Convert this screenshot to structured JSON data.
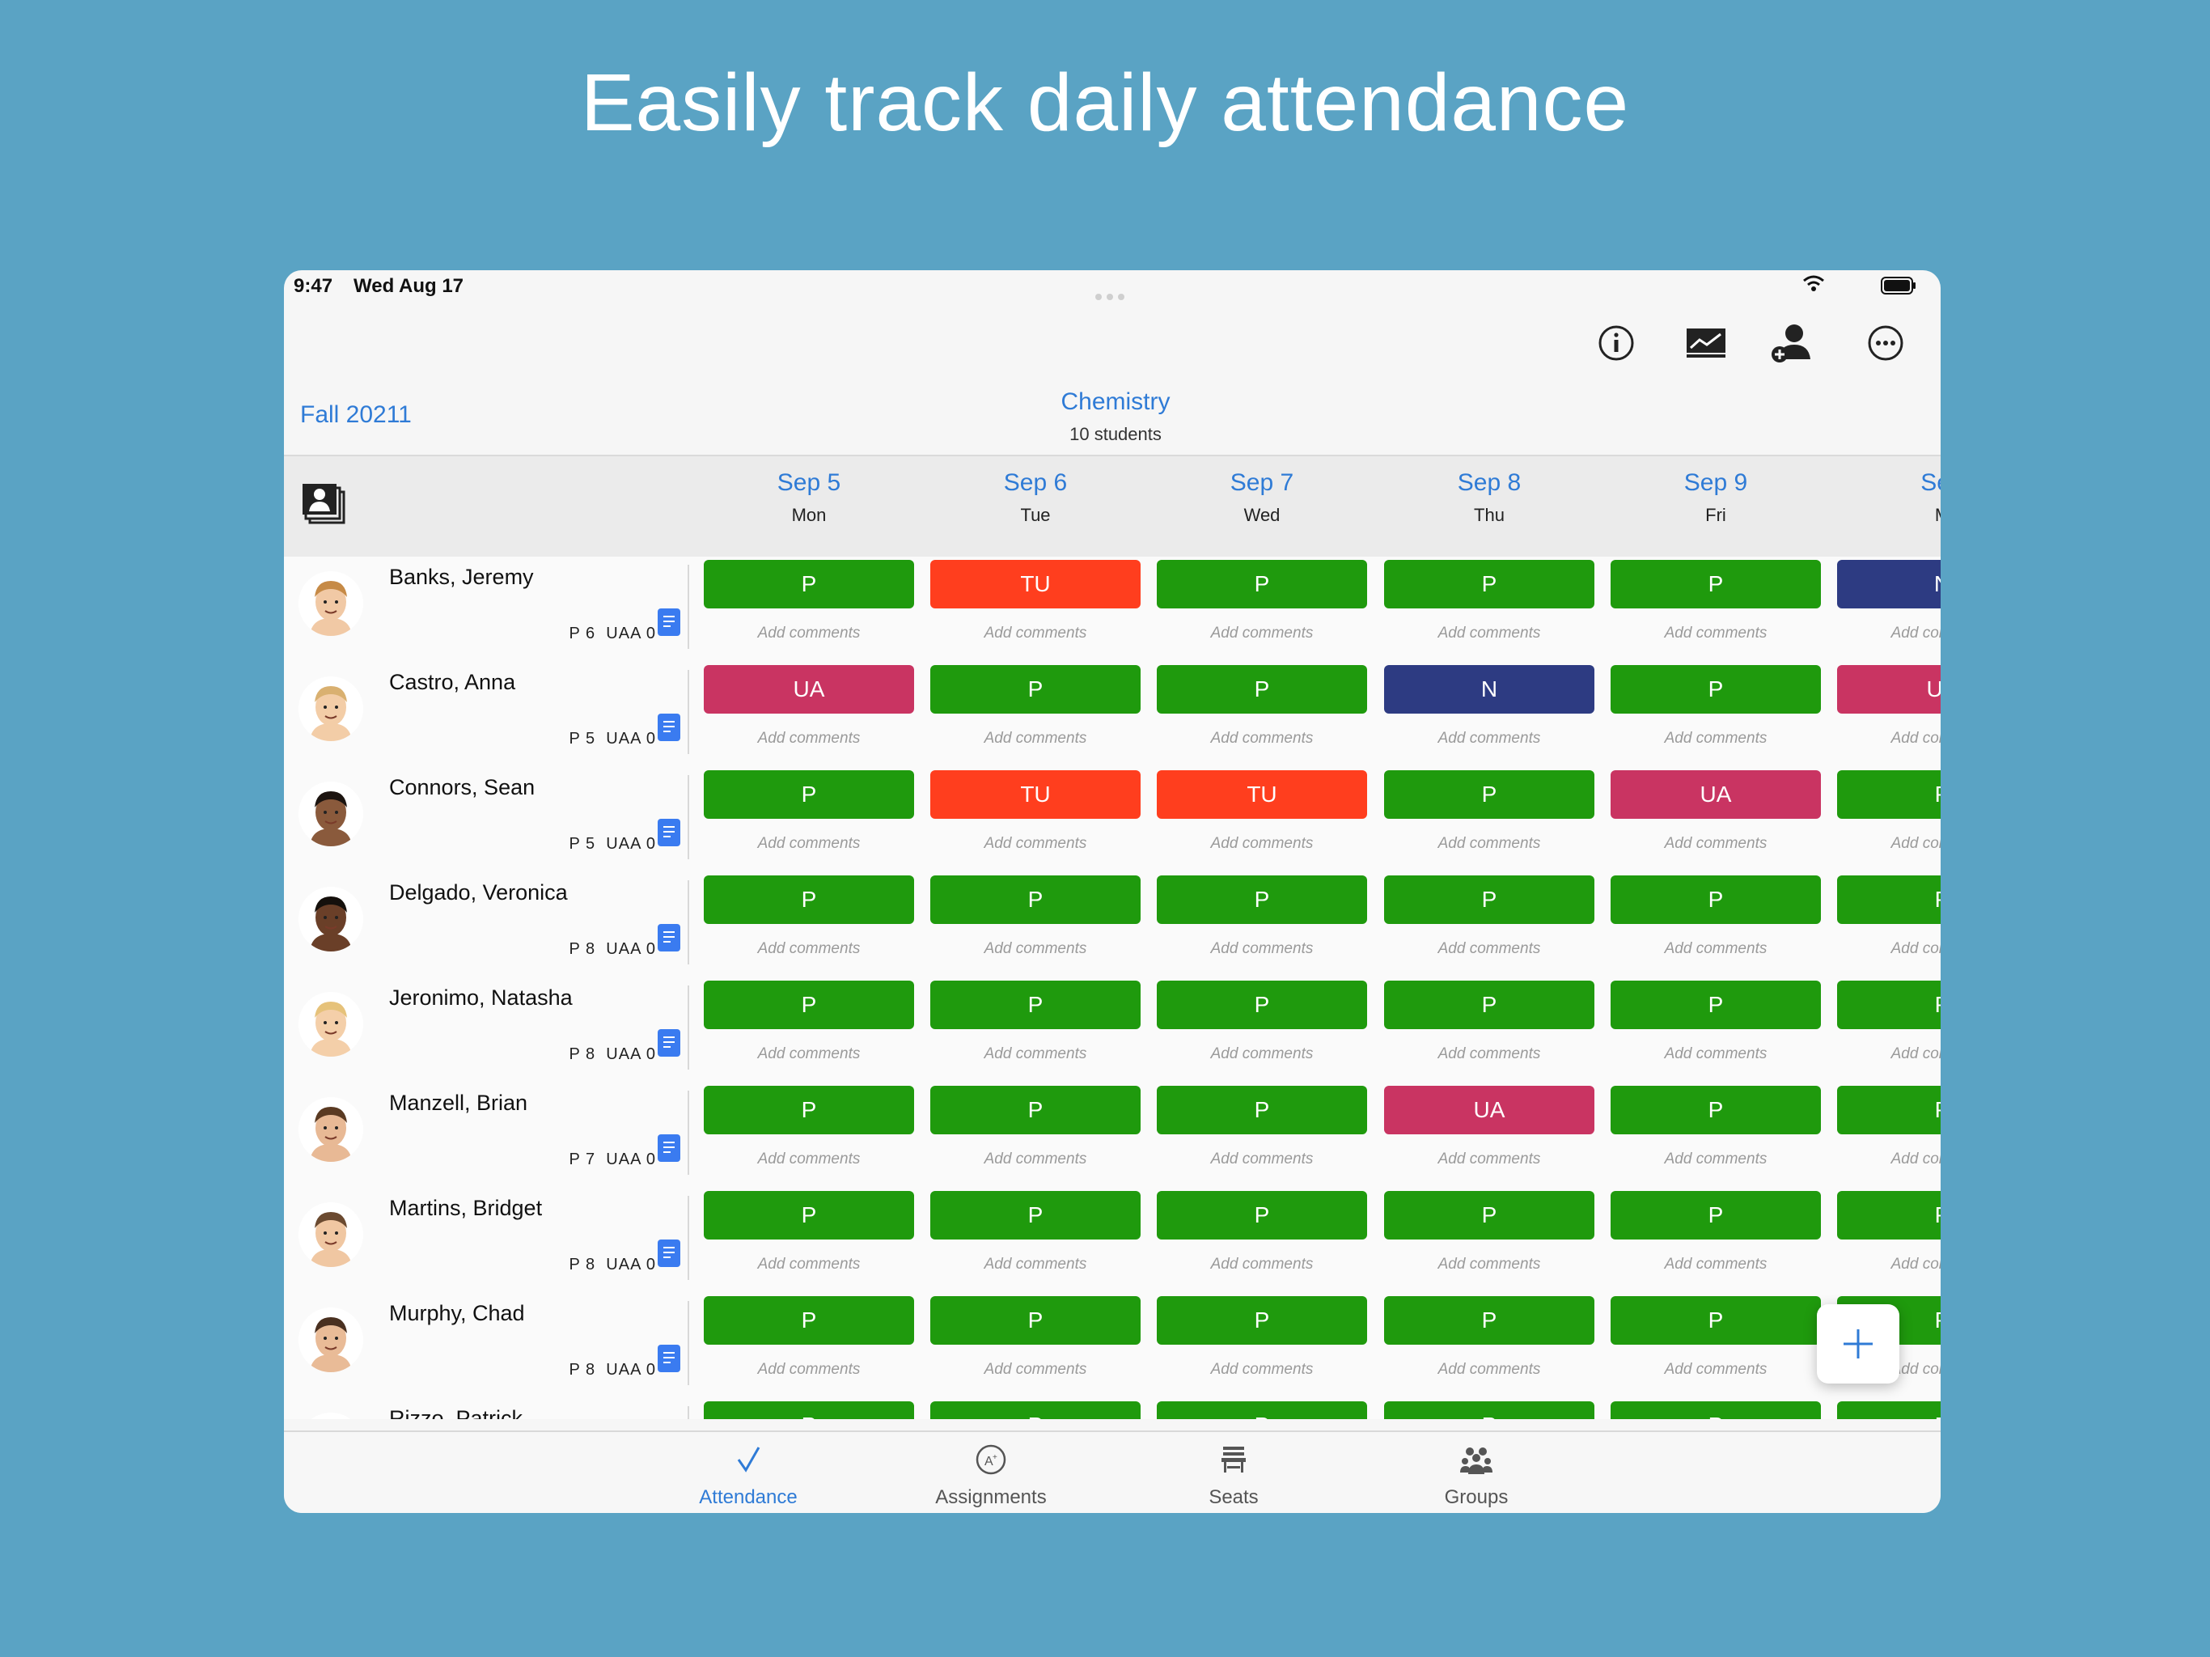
{
  "hero_title": "Easily track daily attendance",
  "status_bar": {
    "time": "9:47",
    "date": "Wed Aug 17"
  },
  "header": {
    "semester": "Fall 20211",
    "class_name": "Chemistry",
    "student_count": "10 students",
    "toolbar_icons": [
      "info-icon",
      "chart-icon",
      "add-student-icon",
      "more-icon"
    ]
  },
  "days": [
    {
      "date": "Sep 5",
      "weekday": "Mon"
    },
    {
      "date": "Sep 6",
      "weekday": "Tue"
    },
    {
      "date": "Sep 7",
      "weekday": "Wed"
    },
    {
      "date": "Sep 8",
      "weekday": "Thu"
    },
    {
      "date": "Sep 9",
      "weekday": "Fri"
    },
    {
      "date": "Sep",
      "weekday": "M"
    }
  ],
  "comment_placeholder": "Add comments",
  "status_colors": {
    "P": "#1f9a0d",
    "TU": "#ff3e1e",
    "UA": "#c93462",
    "N": "#2d3b82"
  },
  "students": [
    {
      "name": "Banks, Jeremy",
      "p": "P 6",
      "uaa": "UAA 0",
      "marks": [
        "P",
        "TU",
        "P",
        "P",
        "P",
        "N"
      ]
    },
    {
      "name": "Castro, Anna",
      "p": "P 5",
      "uaa": "UAA 0",
      "marks": [
        "UA",
        "P",
        "P",
        "N",
        "P",
        "UA"
      ]
    },
    {
      "name": "Connors, Sean",
      "p": "P 5",
      "uaa": "UAA 0",
      "marks": [
        "P",
        "TU",
        "TU",
        "P",
        "UA",
        "P"
      ]
    },
    {
      "name": "Delgado, Veronica",
      "p": "P 8",
      "uaa": "UAA 0",
      "marks": [
        "P",
        "P",
        "P",
        "P",
        "P",
        "P"
      ]
    },
    {
      "name": "Jeronimo, Natasha",
      "p": "P 8",
      "uaa": "UAA 0",
      "marks": [
        "P",
        "P",
        "P",
        "P",
        "P",
        "P"
      ]
    },
    {
      "name": "Manzell, Brian",
      "p": "P 7",
      "uaa": "UAA 0",
      "marks": [
        "P",
        "P",
        "P",
        "UA",
        "P",
        "P"
      ]
    },
    {
      "name": "Martins, Bridget",
      "p": "P 8",
      "uaa": "UAA 0",
      "marks": [
        "P",
        "P",
        "P",
        "P",
        "P",
        "P"
      ]
    },
    {
      "name": "Murphy, Chad",
      "p": "P 8",
      "uaa": "UAA 0",
      "marks": [
        "P",
        "P",
        "P",
        "P",
        "P",
        "P"
      ]
    },
    {
      "name": "Rizzo, Patrick",
      "p": "",
      "uaa": "",
      "marks": [
        "P",
        "P",
        "P",
        "P",
        "P",
        "P"
      ]
    }
  ],
  "tabs": [
    {
      "label": "Attendance",
      "icon": "checkmark-icon",
      "active": true
    },
    {
      "label": "Assignments",
      "icon": "assignments-icon",
      "active": false
    },
    {
      "label": "Seats",
      "icon": "seats-icon",
      "active": false
    },
    {
      "label": "Groups",
      "icon": "groups-icon",
      "active": false
    }
  ]
}
